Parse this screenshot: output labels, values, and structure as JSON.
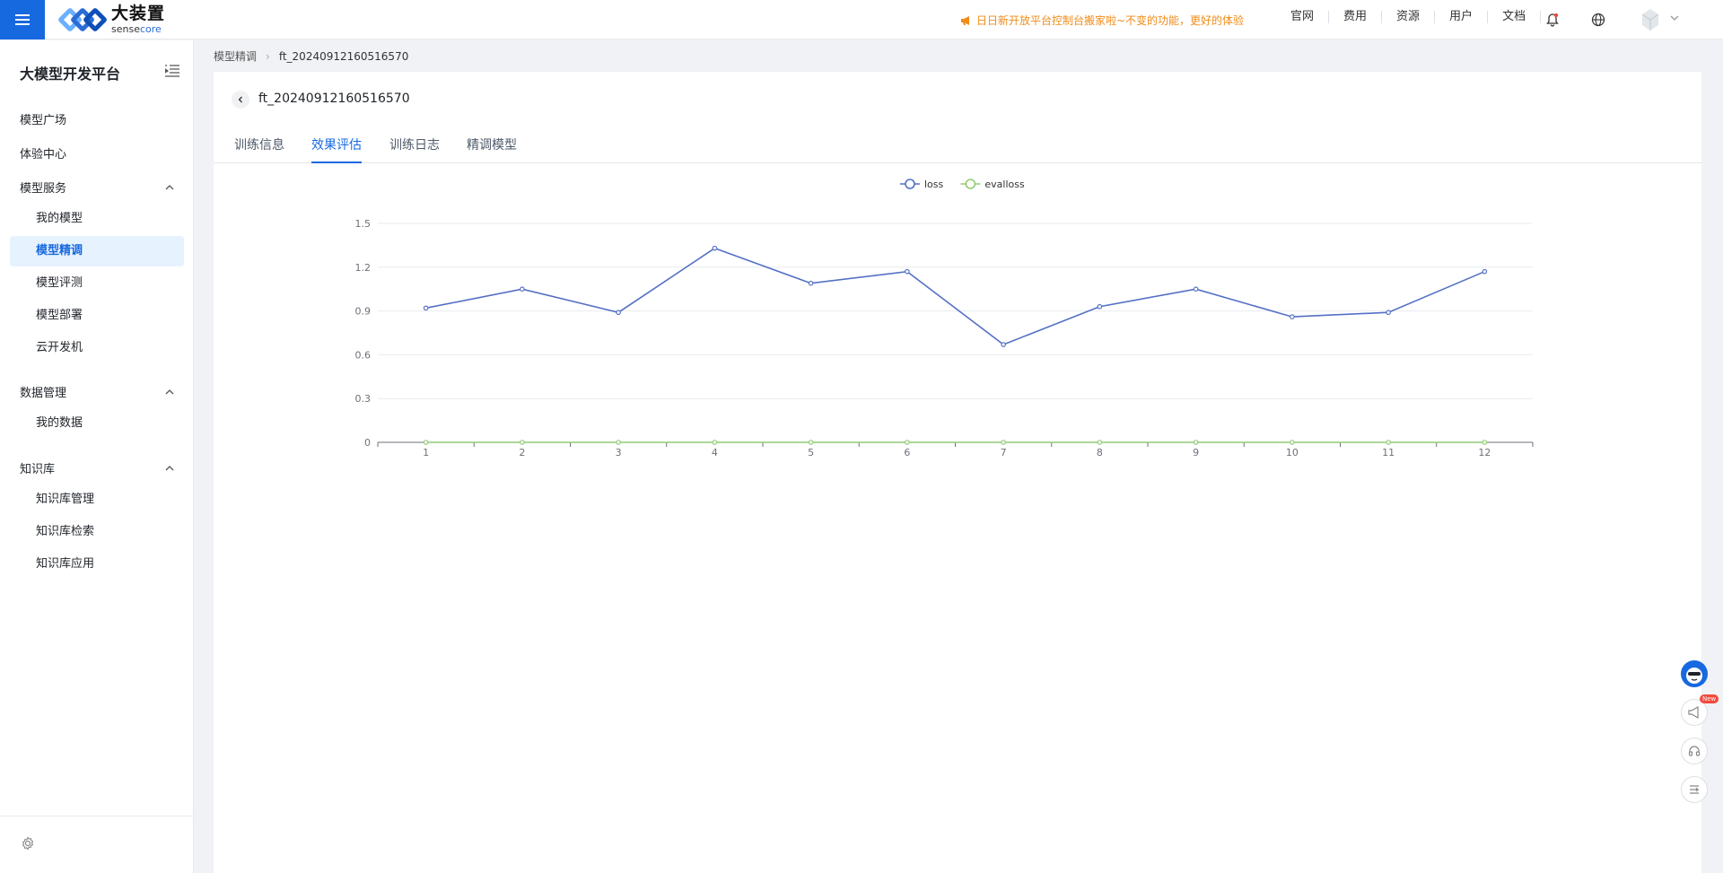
{
  "topbar": {
    "menu_icon": "hamburger-icon",
    "logo_cn": "大装置",
    "logo_en_a": "sense",
    "logo_en_b": "core",
    "notice": "日日新开放平台控制台搬家啦~不变的功能，更好的体验",
    "links": [
      "官网",
      "费用",
      "资源",
      "用户",
      "文档"
    ],
    "icons": [
      "bell-icon",
      "globe-icon"
    ],
    "accent": "#1769e0",
    "notice_color": "#f08c1a"
  },
  "sidebar": {
    "title": "大模型开发平台",
    "items": [
      {
        "label": "模型广场"
      },
      {
        "label": "体验中心"
      }
    ],
    "groups": [
      {
        "label": "模型服务",
        "children": [
          "我的模型",
          "模型精调",
          "模型评测",
          "模型部署",
          "云开发机"
        ]
      },
      {
        "label": "数据管理",
        "children": [
          "我的数据"
        ]
      },
      {
        "label": "知识库",
        "children": [
          "知识库管理",
          "知识库检索",
          "知识库应用"
        ]
      }
    ],
    "active_item": "模型精调"
  },
  "breadcrumb": {
    "parent": "模型精调",
    "current": "ft_20240912160516570"
  },
  "page": {
    "title": "ft_20240912160516570",
    "tabs": [
      "训练信息",
      "效果评估",
      "训练日志",
      "精调模型"
    ],
    "active_tab": "效果评估"
  },
  "chart_data": {
    "type": "line",
    "x": [
      "1",
      "2",
      "3",
      "4",
      "5",
      "6",
      "7",
      "8",
      "9",
      "10",
      "11",
      "12"
    ],
    "series": [
      {
        "name": "loss",
        "color": "#5470c6",
        "values": [
          0.92,
          1.05,
          0.89,
          1.33,
          1.09,
          1.17,
          0.67,
          0.93,
          1.05,
          0.86,
          0.89,
          1.17
        ]
      },
      {
        "name": "evalloss",
        "color": "#91cc75",
        "values": [
          0,
          0,
          0,
          0,
          0,
          0,
          0,
          0,
          0,
          0,
          0,
          0
        ]
      }
    ],
    "yticks": [
      "0",
      "0.3",
      "0.6",
      "0.9",
      "1.2",
      "1.5"
    ],
    "ylim": [
      0,
      1.5
    ],
    "grid": true,
    "legend": "top-center"
  },
  "floaters": {
    "new_badge": "New",
    "icons": [
      "assistant-avatar-icon",
      "announcement-icon",
      "headset-icon",
      "menu-list-icon"
    ]
  }
}
